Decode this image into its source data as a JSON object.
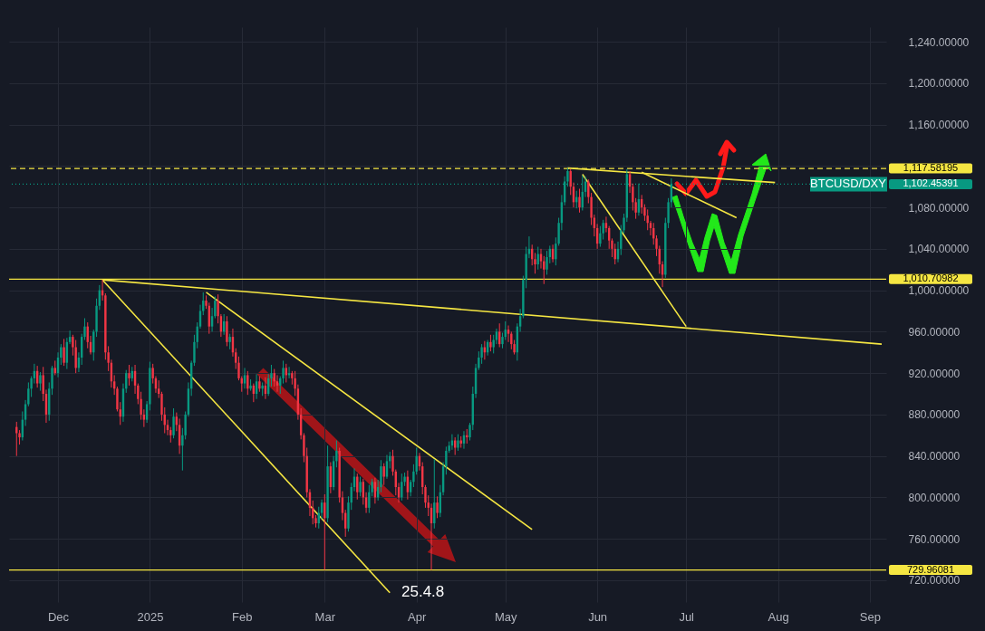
{
  "chart_data": {
    "type": "candlestick",
    "x": [
      "2024-11-17",
      "2024-11-18",
      "2024-11-19",
      "2024-11-20",
      "2024-11-21",
      "2024-11-22",
      "2024-11-23",
      "2024-11-24",
      "2024-11-25",
      "2024-11-26",
      "2024-11-27",
      "2024-11-28",
      "2024-11-29",
      "2024-11-30",
      "2024-12-01",
      "2024-12-02",
      "2024-12-03",
      "2024-12-04",
      "2024-12-05",
      "2024-12-06",
      "2024-12-07",
      "2024-12-08",
      "2024-12-09",
      "2024-12-10",
      "2024-12-11",
      "2024-12-12",
      "2024-12-13",
      "2024-12-14",
      "2024-12-15",
      "2024-12-16",
      "2024-12-17",
      "2024-12-18",
      "2024-12-19",
      "2024-12-20",
      "2024-12-21",
      "2024-12-22",
      "2024-12-23",
      "2024-12-24",
      "2024-12-25",
      "2024-12-26",
      "2024-12-27",
      "2024-12-28",
      "2024-12-29",
      "2024-12-30",
      "2024-12-31",
      "2025-01-01",
      "2025-01-02",
      "2025-01-03",
      "2025-01-04",
      "2025-01-05",
      "2025-01-06",
      "2025-01-07",
      "2025-01-08",
      "2025-01-09",
      "2025-01-10",
      "2025-01-11",
      "2025-01-12",
      "2025-01-13",
      "2025-01-14",
      "2025-01-15",
      "2025-01-16",
      "2025-01-17",
      "2025-01-18",
      "2025-01-19",
      "2025-01-20",
      "2025-01-21",
      "2025-01-22",
      "2025-01-23",
      "2025-01-24",
      "2025-01-25",
      "2025-01-26",
      "2025-01-27",
      "2025-01-28",
      "2025-01-29",
      "2025-01-30",
      "2025-01-31",
      "2025-02-01",
      "2025-02-02",
      "2025-02-03",
      "2025-02-04",
      "2025-02-05",
      "2025-02-06",
      "2025-02-07",
      "2025-02-08",
      "2025-02-09",
      "2025-02-10",
      "2025-02-11",
      "2025-02-12",
      "2025-02-13",
      "2025-02-14",
      "2025-02-15",
      "2025-02-16",
      "2025-02-17",
      "2025-02-18",
      "2025-02-19",
      "2025-02-20",
      "2025-02-21",
      "2025-02-22",
      "2025-02-23",
      "2025-02-24",
      "2025-02-25",
      "2025-02-26",
      "2025-02-27",
      "2025-02-28",
      "2025-03-01",
      "2025-03-02",
      "2025-03-03",
      "2025-03-04",
      "2025-03-05",
      "2025-03-06",
      "2025-03-07",
      "2025-03-08",
      "2025-03-09",
      "2025-03-10",
      "2025-03-11",
      "2025-03-12",
      "2025-03-13",
      "2025-03-14",
      "2025-03-15",
      "2025-03-16",
      "2025-03-17",
      "2025-03-18",
      "2025-03-19",
      "2025-03-20",
      "2025-03-21",
      "2025-03-22",
      "2025-03-23",
      "2025-03-24",
      "2025-03-25",
      "2025-03-26",
      "2025-03-27",
      "2025-03-28",
      "2025-03-29",
      "2025-03-30",
      "2025-03-31",
      "2025-04-01",
      "2025-04-02",
      "2025-04-03",
      "2025-04-04",
      "2025-04-05",
      "2025-04-06",
      "2025-04-07",
      "2025-04-08",
      "2025-04-09",
      "2025-04-10",
      "2025-04-11",
      "2025-04-12",
      "2025-04-13",
      "2025-04-14",
      "2025-04-15",
      "2025-04-16",
      "2025-04-17",
      "2025-04-18",
      "2025-04-19",
      "2025-04-20",
      "2025-04-21",
      "2025-04-22",
      "2025-04-23",
      "2025-04-24",
      "2025-04-25",
      "2025-04-26",
      "2025-04-27",
      "2025-04-28",
      "2025-04-29",
      "2025-04-30",
      "2025-05-01",
      "2025-05-02",
      "2025-05-03",
      "2025-05-04",
      "2025-05-05",
      "2025-05-06",
      "2025-05-07",
      "2025-05-08",
      "2025-05-09",
      "2025-05-10",
      "2025-05-11",
      "2025-05-12",
      "2025-05-13",
      "2025-05-14",
      "2025-05-15",
      "2025-05-16",
      "2025-05-17",
      "2025-05-18",
      "2025-05-19",
      "2025-05-20",
      "2025-05-21",
      "2025-05-22",
      "2025-05-23",
      "2025-05-24",
      "2025-05-25",
      "2025-05-26",
      "2025-05-27",
      "2025-05-28",
      "2025-05-29",
      "2025-05-30",
      "2025-05-31",
      "2025-06-01",
      "2025-06-02",
      "2025-06-03",
      "2025-06-04",
      "2025-06-05",
      "2025-06-06",
      "2025-06-07",
      "2025-06-08",
      "2025-06-09",
      "2025-06-10",
      "2025-06-11",
      "2025-06-12",
      "2025-06-13",
      "2025-06-14",
      "2025-06-15",
      "2025-06-16",
      "2025-06-17",
      "2025-06-18",
      "2025-06-19",
      "2025-06-20",
      "2025-06-21",
      "2025-06-22",
      "2025-06-23",
      "2025-06-24",
      "2025-06-25",
      "2025-06-26"
    ],
    "ohlc": [
      [
        868,
        873,
        840,
        862
      ],
      [
        862,
        865,
        851,
        858
      ],
      [
        858,
        883,
        855,
        875
      ],
      [
        875,
        894,
        869,
        890
      ],
      [
        890,
        911,
        888,
        905
      ],
      [
        905,
        917,
        897,
        915
      ],
      [
        915,
        929,
        910,
        922
      ],
      [
        922,
        927,
        906,
        910
      ],
      [
        910,
        921,
        903,
        918
      ],
      [
        918,
        926,
        893,
        900
      ],
      [
        900,
        904,
        872,
        880
      ],
      [
        880,
        911,
        874,
        905
      ],
      [
        905,
        927,
        899,
        925
      ],
      [
        925,
        932,
        918,
        920
      ],
      [
        920,
        940,
        916,
        935
      ],
      [
        935,
        948,
        928,
        945
      ],
      [
        945,
        953,
        927,
        930
      ],
      [
        930,
        954,
        924,
        950
      ],
      [
        950,
        961,
        948,
        955
      ],
      [
        955,
        957,
        937,
        945
      ],
      [
        945,
        952,
        920,
        925
      ],
      [
        925,
        940,
        921,
        935
      ],
      [
        935,
        958,
        928,
        955
      ],
      [
        955,
        973,
        952,
        965
      ],
      [
        965,
        969,
        944,
        950
      ],
      [
        950,
        956,
        938,
        940
      ],
      [
        940,
        962,
        932,
        960
      ],
      [
        960,
        992,
        955,
        985
      ],
      [
        985,
        1005,
        981,
        1000
      ],
      [
        1000,
        1010,
        990,
        995
      ],
      [
        995,
        997,
        933,
        940
      ],
      [
        940,
        946,
        922,
        930
      ],
      [
        930,
        933,
        906,
        912
      ],
      [
        912,
        918,
        899,
        905
      ],
      [
        905,
        907,
        883,
        885
      ],
      [
        885,
        892,
        870,
        878
      ],
      [
        878,
        910,
        873,
        905
      ],
      [
        905,
        923,
        901,
        920
      ],
      [
        920,
        928,
        908,
        915
      ],
      [
        915,
        926,
        912,
        922
      ],
      [
        922,
        928,
        900,
        908
      ],
      [
        908,
        910,
        890,
        895
      ],
      [
        895,
        902,
        875,
        880
      ],
      [
        880,
        885,
        868,
        875
      ],
      [
        875,
        893,
        872,
        890
      ],
      [
        890,
        931,
        884,
        925
      ],
      [
        925,
        929,
        910,
        915
      ],
      [
        915,
        917,
        901,
        905
      ],
      [
        905,
        913,
        896,
        900
      ],
      [
        900,
        902,
        874,
        880
      ],
      [
        880,
        887,
        862,
        870
      ],
      [
        870,
        875,
        860,
        865
      ],
      [
        865,
        868,
        853,
        860
      ],
      [
        860,
        886,
        857,
        878
      ],
      [
        878,
        882,
        864,
        870
      ],
      [
        870,
        876,
        842,
        850
      ],
      [
        850,
        867,
        826,
        860
      ],
      [
        860,
        883,
        856,
        880
      ],
      [
        880,
        911,
        878,
        905
      ],
      [
        905,
        932,
        898,
        930
      ],
      [
        930,
        957,
        927,
        950
      ],
      [
        950,
        969,
        944,
        965
      ],
      [
        965,
        986,
        963,
        980
      ],
      [
        980,
        998,
        976,
        990
      ],
      [
        990,
        995,
        982,
        985
      ],
      [
        985,
        988,
        958,
        965
      ],
      [
        965,
        983,
        960,
        975
      ],
      [
        975,
        994,
        973,
        990
      ],
      [
        990,
        996,
        968,
        975
      ],
      [
        975,
        977,
        955,
        960
      ],
      [
        960,
        977,
        957,
        970
      ],
      [
        970,
        975,
        946,
        950
      ],
      [
        950,
        958,
        943,
        955
      ],
      [
        955,
        963,
        936,
        940
      ],
      [
        940,
        944,
        924,
        930
      ],
      [
        930,
        936,
        913,
        915
      ],
      [
        915,
        917,
        902,
        910
      ],
      [
        910,
        925,
        905,
        918
      ],
      [
        918,
        922,
        899,
        905
      ],
      [
        905,
        914,
        903,
        908
      ],
      [
        908,
        910,
        892,
        900
      ],
      [
        900,
        919,
        895,
        912
      ],
      [
        912,
        917,
        902,
        905
      ],
      [
        905,
        911,
        898,
        908
      ],
      [
        908,
        916,
        895,
        900
      ],
      [
        900,
        919,
        898,
        915
      ],
      [
        915,
        928,
        907,
        920
      ],
      [
        920,
        924,
        907,
        912
      ],
      [
        912,
        918,
        902,
        908
      ],
      [
        908,
        917,
        900,
        915
      ],
      [
        915,
        932,
        910,
        925
      ],
      [
        925,
        929,
        911,
        918
      ],
      [
        918,
        926,
        915,
        920
      ],
      [
        920,
        922,
        909,
        915
      ],
      [
        915,
        922,
        898,
        905
      ],
      [
        905,
        909,
        875,
        880
      ],
      [
        880,
        886,
        856,
        860
      ],
      [
        860,
        862,
        834,
        840
      ],
      [
        840,
        848,
        800,
        805
      ],
      [
        805,
        808,
        782,
        790
      ],
      [
        790,
        797,
        774,
        780
      ],
      [
        780,
        783,
        771,
        775
      ],
      [
        775,
        791,
        770,
        785
      ],
      [
        785,
        798,
        779,
        795
      ],
      [
        795,
        803,
        730,
        780
      ],
      [
        780,
        850,
        776,
        830
      ],
      [
        830,
        834,
        804,
        810
      ],
      [
        810,
        840,
        807,
        835
      ],
      [
        835,
        855,
        829,
        845
      ],
      [
        845,
        848,
        795,
        800
      ],
      [
        800,
        806,
        778,
        785
      ],
      [
        785,
        788,
        762,
        770
      ],
      [
        770,
        801,
        767,
        795
      ],
      [
        795,
        814,
        788,
        810
      ],
      [
        810,
        828,
        806,
        820
      ],
      [
        820,
        823,
        798,
        805
      ],
      [
        805,
        820,
        801,
        815
      ],
      [
        815,
        818,
        793,
        800
      ],
      [
        800,
        805,
        785,
        790
      ],
      [
        790,
        812,
        785,
        805
      ],
      [
        805,
        818,
        801,
        815
      ],
      [
        815,
        819,
        794,
        800
      ],
      [
        800,
        817,
        797,
        810
      ],
      [
        810,
        836,
        805,
        830
      ],
      [
        830,
        833,
        812,
        820
      ],
      [
        820,
        841,
        818,
        835
      ],
      [
        835,
        844,
        828,
        840
      ],
      [
        840,
        846,
        821,
        825
      ],
      [
        825,
        827,
        802,
        810
      ],
      [
        810,
        814,
        795,
        800
      ],
      [
        800,
        823,
        797,
        815
      ],
      [
        815,
        824,
        811,
        820
      ],
      [
        820,
        826,
        798,
        805
      ],
      [
        805,
        817,
        801,
        815
      ],
      [
        815,
        832,
        810,
        825
      ],
      [
        825,
        848,
        822,
        840
      ],
      [
        840,
        843,
        826,
        830
      ],
      [
        830,
        834,
        803,
        810
      ],
      [
        810,
        812,
        790,
        795
      ],
      [
        795,
        802,
        782,
        790
      ],
      [
        790,
        794,
        730,
        775
      ],
      [
        775,
        837,
        770,
        795
      ],
      [
        795,
        801,
        780,
        785
      ],
      [
        785,
        812,
        781,
        805
      ],
      [
        805,
        834,
        802,
        830
      ],
      [
        830,
        849,
        822,
        845
      ],
      [
        845,
        854,
        843,
        850
      ],
      [
        850,
        861,
        846,
        855
      ],
      [
        855,
        858,
        841,
        848
      ],
      [
        848,
        861,
        845,
        855
      ],
      [
        855,
        859,
        848,
        852
      ],
      [
        852,
        864,
        847,
        860
      ],
      [
        860,
        866,
        852,
        858
      ],
      [
        858,
        872,
        855,
        870
      ],
      [
        870,
        907,
        865,
        900
      ],
      [
        900,
        929,
        896,
        925
      ],
      [
        925,
        941,
        923,
        935
      ],
      [
        935,
        948,
        929,
        945
      ],
      [
        945,
        951,
        933,
        940
      ],
      [
        940,
        952,
        937,
        950
      ],
      [
        950,
        957,
        941,
        945
      ],
      [
        945,
        957,
        939,
        952
      ],
      [
        952,
        963,
        948,
        960
      ],
      [
        960,
        968,
        945,
        948
      ],
      [
        948,
        959,
        944,
        955
      ],
      [
        955,
        970,
        952,
        962
      ],
      [
        962,
        966,
        950,
        958
      ],
      [
        958,
        960,
        943,
        948
      ],
      [
        948,
        952,
        938,
        940
      ],
      [
        940,
        968,
        932,
        965
      ],
      [
        965,
        982,
        960,
        975
      ],
      [
        975,
        1014,
        973,
        1010
      ],
      [
        1010,
        1042,
        1002,
        1035
      ],
      [
        1035,
        1052,
        1031,
        1040
      ],
      [
        1040,
        1044,
        1024,
        1030
      ],
      [
        1030,
        1036,
        1016,
        1025
      ],
      [
        1025,
        1042,
        1020,
        1035
      ],
      [
        1035,
        1040,
        1021,
        1028
      ],
      [
        1028,
        1033,
        1006,
        1020
      ],
      [
        1020,
        1038,
        1015,
        1032
      ],
      [
        1032,
        1043,
        1026,
        1040
      ],
      [
        1040,
        1044,
        1027,
        1030
      ],
      [
        1030,
        1051,
        1024,
        1045
      ],
      [
        1045,
        1070,
        1043,
        1065
      ],
      [
        1065,
        1092,
        1058,
        1085
      ],
      [
        1085,
        1110,
        1082,
        1105
      ],
      [
        1105,
        1118,
        1100,
        1115
      ],
      [
        1115,
        1117,
        1092,
        1100
      ],
      [
        1100,
        1104,
        1080,
        1085
      ],
      [
        1085,
        1096,
        1079,
        1090
      ],
      [
        1090,
        1098,
        1075,
        1080
      ],
      [
        1080,
        1111,
        1077,
        1095
      ],
      [
        1095,
        1110,
        1090,
        1105
      ],
      [
        1105,
        1107,
        1084,
        1090
      ],
      [
        1090,
        1094,
        1063,
        1070
      ],
      [
        1070,
        1073,
        1052,
        1060
      ],
      [
        1060,
        1064,
        1040,
        1045
      ],
      [
        1045,
        1062,
        1042,
        1055
      ],
      [
        1055,
        1068,
        1049,
        1065
      ],
      [
        1065,
        1071,
        1056,
        1060
      ],
      [
        1060,
        1062,
        1040,
        1048
      ],
      [
        1048,
        1050,
        1032,
        1040
      ],
      [
        1040,
        1045,
        1025,
        1030
      ],
      [
        1030,
        1047,
        1027,
        1040
      ],
      [
        1040,
        1063,
        1034,
        1058
      ],
      [
        1058,
        1074,
        1055,
        1070
      ],
      [
        1070,
        1117,
        1066,
        1112
      ],
      [
        1112,
        1115,
        1094,
        1100
      ],
      [
        1100,
        1103,
        1077,
        1085
      ],
      [
        1085,
        1089,
        1069,
        1075
      ],
      [
        1075,
        1103,
        1072,
        1088
      ],
      [
        1088,
        1092,
        1074,
        1080
      ],
      [
        1080,
        1083,
        1067,
        1072
      ],
      [
        1072,
        1078,
        1058,
        1065
      ],
      [
        1065,
        1067,
        1053,
        1060
      ],
      [
        1060,
        1065,
        1044,
        1050
      ],
      [
        1050,
        1053,
        1033,
        1040
      ],
      [
        1040,
        1043,
        1016,
        1025
      ],
      [
        1025,
        1028,
        1003,
        1015
      ],
      [
        1015,
        1070,
        1012,
        1065
      ],
      [
        1065,
        1089,
        1060,
        1085
      ],
      [
        1085,
        1108,
        1080,
        1102.45391
      ]
    ],
    "series": [
      {
        "type": "line",
        "color": "#f5e642",
        "x": [
          "2024-12-16",
          "2025-09-05"
        ],
        "values": [
          1010,
          948
        ]
      },
      {
        "type": "line",
        "color": "#f5e642",
        "x": [
          "2024-12-16",
          "2025-03-23"
        ],
        "values": [
          1010,
          708
        ]
      },
      {
        "type": "line",
        "color": "#f5e642",
        "x": [
          "2025-01-20",
          "2025-05-10"
        ],
        "values": [
          998,
          769
        ]
      },
      {
        "type": "line",
        "color": "#f5e642",
        "x": [
          "2025-05-22",
          "2025-07-31"
        ],
        "values": [
          1118,
          1104
        ]
      },
      {
        "type": "line",
        "color": "#f5e642",
        "x": [
          "2025-05-27",
          "2025-07-01"
        ],
        "values": [
          1112,
          965
        ]
      },
      {
        "type": "line",
        "color": "#f5e642",
        "x": [
          "2025-06-16",
          "2025-07-18"
        ],
        "values": [
          1114,
          1070
        ]
      }
    ],
    "ref_lines": [
      {
        "axis": "y",
        "value": 1117.58195,
        "label": "1,117.58195",
        "color": "#f5e642",
        "line_style": "dashed"
      },
      {
        "axis": "y",
        "value": 1102.45391,
        "label": "1,102.45391",
        "color": "#089981",
        "line_style": "dotted"
      },
      {
        "axis": "y",
        "value": 1010.70982,
        "label": "1,010.70982",
        "color": "#f5e642",
        "line_style": "solid"
      },
      {
        "axis": "y",
        "value": 729.96081,
        "label": "729.96081",
        "color": "#f5e642",
        "line_style": "solid"
      }
    ],
    "annotations": [
      "25.4.8",
      {
        "text": "BTCUSD/DXY",
        "y": 1102.45391
      }
    ],
    "xlim": [
      "2024-11-16",
      "2025-09-05"
    ],
    "xticks": [
      {
        "value": "2024-12-01",
        "label": "Dec"
      },
      {
        "value": "2025-01-01",
        "label": "2025"
      },
      {
        "value": "2025-02-01",
        "label": "Feb"
      },
      {
        "value": "2025-03-01",
        "label": "Mar"
      },
      {
        "value": "2025-04-01",
        "label": "Apr"
      },
      {
        "value": "2025-05-01",
        "label": "May"
      },
      {
        "value": "2025-06-01",
        "label": "Jun"
      },
      {
        "value": "2025-07-01",
        "label": "Jul"
      },
      {
        "value": "2025-08-01",
        "label": "Aug"
      },
      {
        "value": "2025-09-01",
        "label": "Sep"
      }
    ],
    "ylim": [
      699,
      1254
    ],
    "yticks": [
      {
        "value": 720,
        "label": "720.00000"
      },
      {
        "value": 760,
        "label": "760.00000"
      },
      {
        "value": 800,
        "label": "800.00000"
      },
      {
        "value": 840,
        "label": "840.00000"
      },
      {
        "value": 880,
        "label": "880.00000"
      },
      {
        "value": 920,
        "label": "920.00000"
      },
      {
        "value": 960,
        "label": "960.00000"
      },
      {
        "value": 1000,
        "label": "1,000.00000"
      },
      {
        "value": 1040,
        "label": "1,040.00000"
      },
      {
        "value": 1080,
        "label": "1,080.00000"
      },
      {
        "value": 1120,
        "label": null
      },
      {
        "value": 1160,
        "label": "1,160.00000"
      },
      {
        "value": 1200,
        "label": "1,200.00000"
      },
      {
        "value": 1240,
        "label": "1,240.00000"
      }
    ],
    "grid": true
  }
}
